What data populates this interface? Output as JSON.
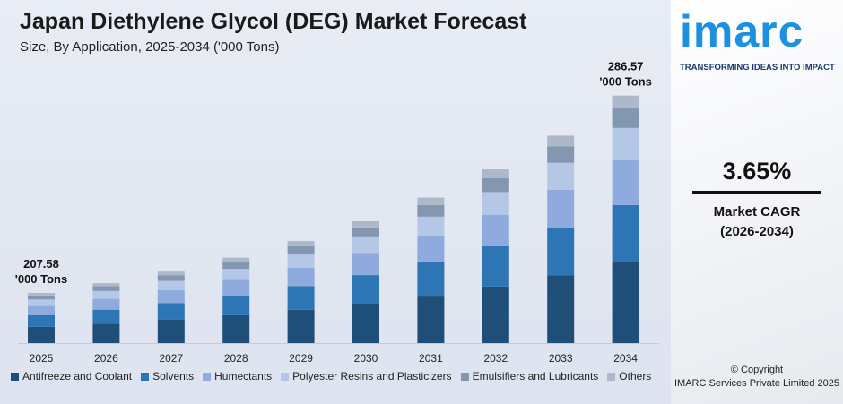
{
  "chart_data": {
    "type": "bar",
    "stacked": true,
    "title": "Japan Diethylene Glycol (DEG) Market Forecast",
    "subtitle": "Size, By Application, 2025-2034 ('000 Tons)",
    "categories": [
      "2025",
      "2026",
      "2027",
      "2028",
      "2029",
      "2030",
      "2031",
      "2032",
      "2033",
      "2034"
    ],
    "totals": [
      207.58,
      215.16,
      223.01,
      231.15,
      239.59,
      248.33,
      257.4,
      266.79,
      276.53,
      286.57
    ],
    "series": [
      {
        "name": "Antifreeze and Coolant",
        "color": "#1f4e79",
        "values": [
          67.7,
          70.1,
          72.7,
          75.4,
          78.1,
          81.0,
          83.9,
          87.0,
          90.1,
          93.4
        ]
      },
      {
        "name": "Solvents",
        "color": "#2e75b6",
        "values": [
          48.2,
          49.9,
          51.7,
          53.6,
          55.6,
          57.6,
          59.7,
          61.9,
          64.2,
          66.5
        ]
      },
      {
        "name": "Humectants",
        "color": "#8faadc",
        "values": [
          37.6,
          38.9,
          40.4,
          41.8,
          43.4,
          44.9,
          46.6,
          48.3,
          50.1,
          51.9
        ]
      },
      {
        "name": "Polyester Resins and Plasticizers",
        "color": "#b4c7e7",
        "values": [
          27.0,
          28.0,
          29.0,
          30.0,
          31.1,
          32.3,
          33.5,
          34.7,
          35.9,
          37.3
        ]
      },
      {
        "name": "Emulsifiers and Lubricants",
        "color": "#8497b0",
        "values": [
          16.6,
          17.2,
          17.8,
          18.5,
          19.2,
          19.9,
          20.6,
          21.3,
          22.1,
          22.9
        ]
      },
      {
        "name": "Others",
        "color": "#adb9ca",
        "values": [
          10.5,
          11.0,
          11.4,
          11.8,
          12.2,
          12.6,
          13.1,
          13.6,
          14.1,
          14.6
        ]
      }
    ],
    "annotations": {
      "first": "207.58",
      "last": "286.57",
      "unit": "'000 Tons"
    },
    "grid": false,
    "legend": "bottom"
  },
  "brand": {
    "logo": "imarc",
    "tagline": "TRANSFORMING IDEAS INTO IMPACT"
  },
  "cagr": {
    "value": "3.65%",
    "label": "Market CAGR",
    "period": "(2026-2034)"
  },
  "copyright": {
    "line1": "© Copyright",
    "line2": "IMARC Services Private Limited 2025"
  }
}
